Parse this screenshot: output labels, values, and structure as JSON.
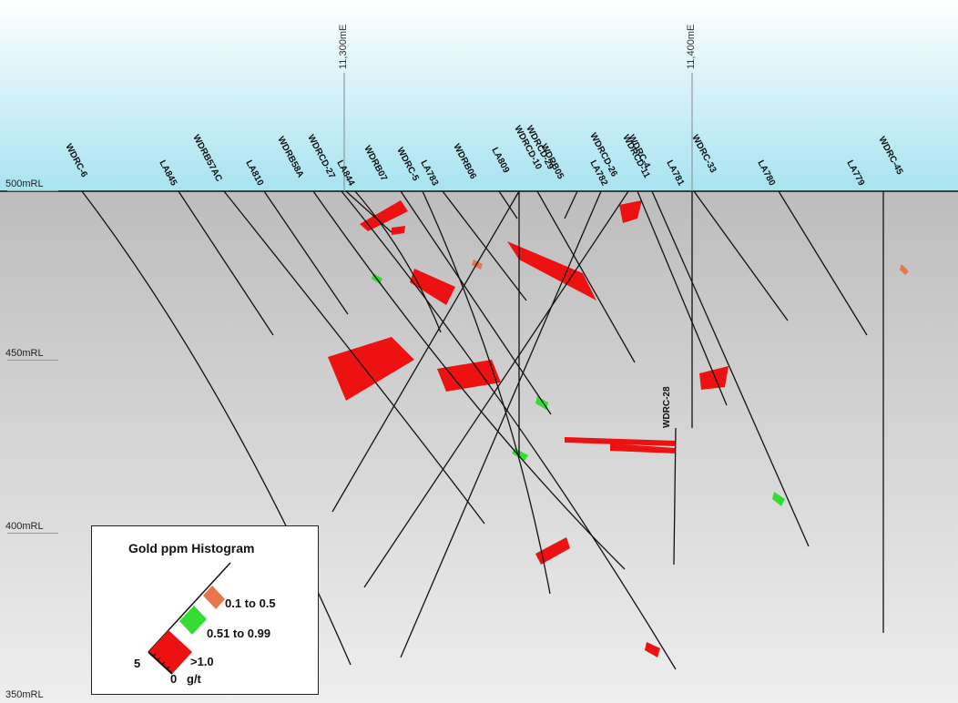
{
  "elevation_labels": [
    "500mRL",
    "450mRL",
    "400mRL",
    "350mRL"
  ],
  "easting_labels": [
    "11,300mE",
    "11,400mE"
  ],
  "drillholes": [
    {
      "name": "WDRC-6"
    },
    {
      "name": "LA845"
    },
    {
      "name": "WDRB57AC"
    },
    {
      "name": "LA810"
    },
    {
      "name": "WDRB58A"
    },
    {
      "name": "WDRCD-27"
    },
    {
      "name": "LA844"
    },
    {
      "name": "WDRB07"
    },
    {
      "name": "WDRC-5"
    },
    {
      "name": "LA783"
    },
    {
      "name": "WDRB06"
    },
    {
      "name": "LA809"
    },
    {
      "name": "WDRCD-10"
    },
    {
      "name": "WDRCD-29"
    },
    {
      "name": "WDRB05"
    },
    {
      "name": "WDRCD-26"
    },
    {
      "name": "LA782"
    },
    {
      "name": "WDRCD-11"
    },
    {
      "name": "WDRC-4"
    },
    {
      "name": "LA781"
    },
    {
      "name": "WDRC-33"
    },
    {
      "name": "LA780"
    },
    {
      "name": "LA779"
    },
    {
      "name": "WDRC-45"
    },
    {
      "name": "WDRC-28"
    }
  ],
  "legend": {
    "title": "Gold ppm Histogram",
    "classes": [
      {
        "label": "0.1 to 0.5",
        "color": "#e8764a"
      },
      {
        "label": "0.51 to 0.99",
        "color": "#33dd33"
      },
      {
        "label": ">1.0",
        "color": "#ee1111"
      }
    ],
    "scale_max": "5",
    "scale_zero": "0",
    "unit": "g/t"
  },
  "colors": {
    "sky_top": "#ffffff",
    "sky_bottom": "#a7e3f0",
    "rock_top": "#bdbdbd",
    "rock_bottom": "#eeeeee",
    "high_grade": "#ee1111",
    "mid_grade": "#33dd33",
    "low_grade": "#e8764a"
  }
}
